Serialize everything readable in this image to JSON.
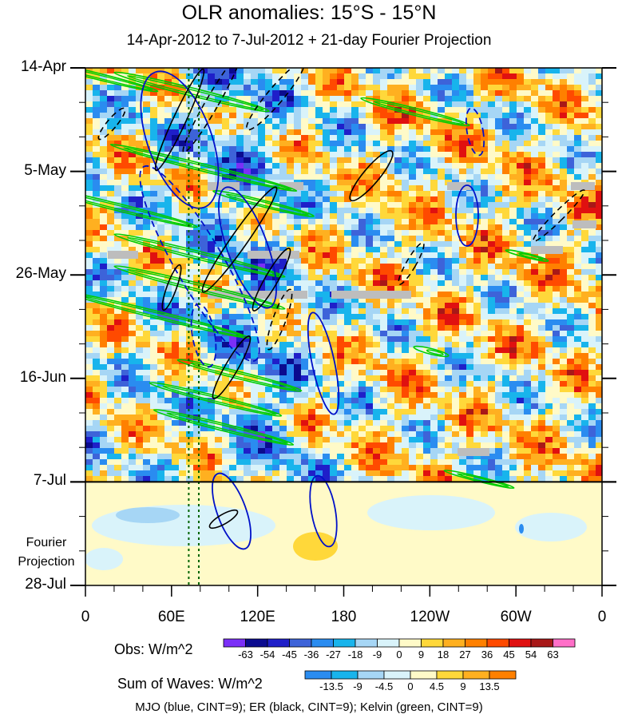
{
  "chart_data": {
    "type": "heatmap",
    "title": "OLR anomalies: 15°S - 15°N",
    "subtitle": "14-Apr-2012 to 7-Jul-2012 + 21-day Fourier Projection",
    "x_tick_labels": [
      "0",
      "60E",
      "120E",
      "180",
      "120W",
      "60W",
      "0"
    ],
    "x_tick_longitudes": [
      0,
      60,
      120,
      180,
      240,
      300,
      360
    ],
    "y_tick_labels": [
      "14-Apr",
      "5-May",
      "26-May",
      "16-Jun",
      "7-Jul",
      "28-Jul"
    ],
    "y_tick_days": [
      0,
      21,
      42,
      63,
      84,
      105
    ],
    "observation_end_day": 84,
    "projection_label": [
      "Fourier",
      "Projection"
    ],
    "reference_lines_longitude": [
      72,
      79
    ],
    "obs_colorbar": {
      "label": "Obs: W/m^2",
      "levels": [
        "-63",
        "-54",
        "-45",
        "-36",
        "-27",
        "-18",
        "-9",
        "0",
        "9",
        "18",
        "27",
        "36",
        "45",
        "54",
        "63"
      ],
      "colors": [
        "#7b2ff7",
        "#0b0b8f",
        "#1f1fc9",
        "#3d63d9",
        "#2a8cf0",
        "#18b4ec",
        "#a6d6f5",
        "#d9f3fa",
        "#fffac8",
        "#ffd83a",
        "#ffb020",
        "#ff8000",
        "#ff4a00",
        "#e01010",
        "#a81818",
        "#ff6fc8"
      ]
    },
    "waves_colorbar": {
      "label": "Sum of Waves: W/m^2",
      "levels": [
        "-13.5",
        "-9",
        "-4.5",
        "0",
        "4.5",
        "9",
        "13.5"
      ],
      "colors": [
        "#2a8cf0",
        "#18b4ec",
        "#a6d6f5",
        "#d9f3fa",
        "#fffac8",
        "#ffd83a",
        "#ffb020",
        "#ff8000"
      ]
    },
    "legend_note": "MJO (blue, CINT=9); ER (black, CINT=9); Kelvin (green, CINT=9)",
    "wave_colors": {
      "mjo": "#0010c8",
      "er": "#000000",
      "kelvin": "#00cc00"
    }
  }
}
